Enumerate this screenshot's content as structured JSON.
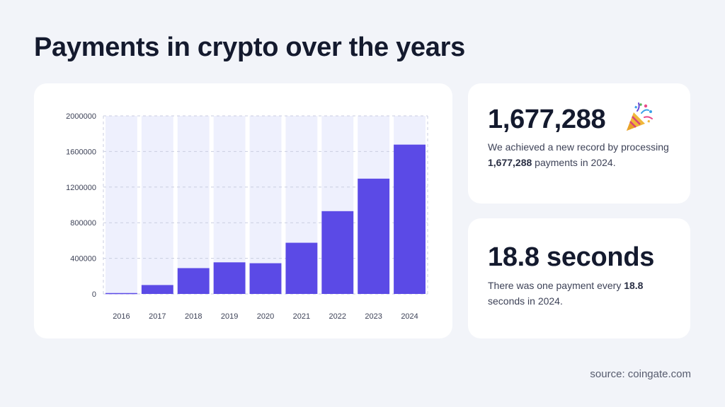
{
  "page": {
    "title": "Payments in crypto over the years",
    "source": "source: coingate.com"
  },
  "colors": {
    "background": "#f2f4f9",
    "bar": "#5b4ae6",
    "bar_background": "#eef0fd",
    "card": "#ffffff"
  },
  "chart_data": {
    "type": "bar",
    "categories": [
      "2016",
      "2017",
      "2018",
      "2019",
      "2020",
      "2021",
      "2022",
      "2023",
      "2024"
    ],
    "values": [
      10000,
      100000,
      290000,
      355000,
      345000,
      575000,
      930000,
      1295000,
      1677288
    ],
    "yticks": [
      "0",
      "400000",
      "800000",
      "1200000",
      "1600000",
      "2000000"
    ],
    "ylim": [
      0,
      2000000
    ],
    "grid": true,
    "title": "",
    "xlabel": "",
    "ylabel": ""
  },
  "stats": [
    {
      "value": "1,677,288",
      "icon": "party-popper-icon",
      "desc_pre": "We achieved a new record by processing ",
      "desc_bold": "1,677,288",
      "desc_post": " payments in 2024."
    },
    {
      "value": "18.8 seconds",
      "desc_pre": "There was one payment every ",
      "desc_bold": "18.8",
      "desc_post": " seconds in 2024."
    }
  ]
}
